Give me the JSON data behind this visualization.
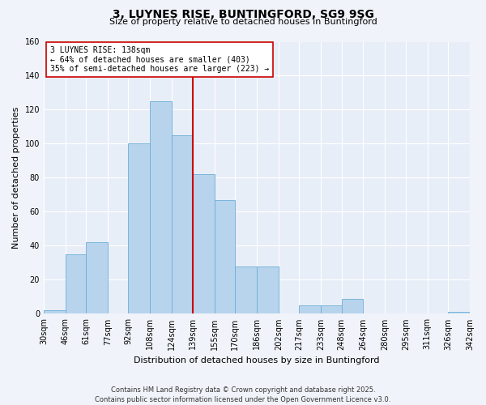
{
  "title": "3, LUYNES RISE, BUNTINGFORD, SG9 9SG",
  "subtitle": "Size of property relative to detached houses in Buntingford",
  "xlabel": "Distribution of detached houses by size in Buntingford",
  "ylabel": "Number of detached properties",
  "bin_labels": [
    "30sqm",
    "46sqm",
    "61sqm",
    "77sqm",
    "92sqm",
    "108sqm",
    "124sqm",
    "139sqm",
    "155sqm",
    "170sqm",
    "186sqm",
    "202sqm",
    "217sqm",
    "233sqm",
    "248sqm",
    "264sqm",
    "280sqm",
    "295sqm",
    "311sqm",
    "326sqm",
    "342sqm"
  ],
  "bin_edges": [
    30,
    46,
    61,
    77,
    92,
    108,
    124,
    139,
    155,
    170,
    186,
    202,
    217,
    233,
    248,
    264,
    280,
    295,
    311,
    326,
    342
  ],
  "bar_heights": [
    2,
    35,
    42,
    0,
    100,
    125,
    105,
    82,
    67,
    28,
    28,
    0,
    5,
    5,
    9,
    0,
    0,
    0,
    0,
    1
  ],
  "bar_color": "#b8d4ed",
  "bar_edge_color": "#6aaed6",
  "reference_line_x": 139,
  "reference_line_color": "#cc0000",
  "annotation_title": "3 LUYNES RISE: 138sqm",
  "annotation_line1": "← 64% of detached houses are smaller (403)",
  "annotation_line2": "35% of semi-detached houses are larger (223) →",
  "annotation_box_edge_color": "#cc0000",
  "ylim": [
    0,
    160
  ],
  "yticks": [
    0,
    20,
    40,
    60,
    80,
    100,
    120,
    140,
    160
  ],
  "footer1": "Contains HM Land Registry data © Crown copyright and database right 2025.",
  "footer2": "Contains public sector information licensed under the Open Government Licence v3.0.",
  "bg_color": "#f0f4fa",
  "plot_bg_color": "#e8eef8",
  "title_fontsize": 10,
  "subtitle_fontsize": 8,
  "ylabel_fontsize": 8,
  "xlabel_fontsize": 8,
  "tick_fontsize": 7,
  "footer_fontsize": 6
}
